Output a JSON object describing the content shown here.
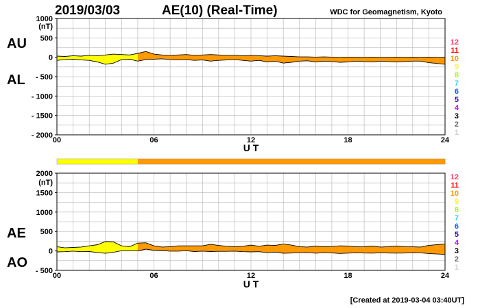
{
  "header": {
    "date": "2019/03/03",
    "title": "AE(10) (Real-Time)",
    "source": "WDC for Geomagnetism, Kyoto"
  },
  "footer": {
    "created": "[Created at 2019-03-04 03:40UT]"
  },
  "colors": {
    "stations_10": "#ff9900",
    "stations_fewer": "#ffff00",
    "outline": "#000000",
    "grid": "#b0b0b0"
  },
  "station_scale": [
    {
      "label": "12",
      "color": "#ff3366"
    },
    {
      "label": "11",
      "color": "#ff0000"
    },
    {
      "label": "10",
      "color": "#ff9900"
    },
    {
      "label": "9",
      "color": "#ffff00"
    },
    {
      "label": "8",
      "color": "#99ff00"
    },
    {
      "label": "7",
      "color": "#33ccff"
    },
    {
      "label": "6",
      "color": "#0066ff"
    },
    {
      "label": "5",
      "color": "#3300cc"
    },
    {
      "label": "4",
      "color": "#cc00ff"
    },
    {
      "label": "3",
      "color": "#000000"
    },
    {
      "label": "2",
      "color": "#666666"
    },
    {
      "label": "1",
      "color": "#cccccc"
    }
  ],
  "chart_data": [
    {
      "type": "area",
      "title": "AU / AL",
      "label_top": "AU",
      "label_bottom": "AL",
      "xlabel": "U T",
      "ylabel": "(nT)",
      "xlim": [
        0,
        24
      ],
      "ylim": [
        -2000,
        1000
      ],
      "xticks": [
        "00",
        "06",
        "12",
        "18",
        "24"
      ],
      "yticks": [
        "1000",
        "500",
        "0",
        "- 500",
        "- 1000",
        "- 1500",
        "- 2000"
      ],
      "ytick_values": [
        1000,
        500,
        0,
        -500,
        -1000,
        -1500,
        -2000
      ],
      "grid": true,
      "x_hours": [
        0,
        0.5,
        1,
        1.5,
        2,
        2.5,
        3,
        3.5,
        4,
        4.5,
        5,
        5.5,
        6,
        6.5,
        7,
        7.5,
        8,
        8.5,
        9,
        9.5,
        10,
        10.5,
        11,
        11.5,
        12,
        12.5,
        13,
        13.5,
        14,
        14.5,
        15,
        15.5,
        16,
        16.5,
        17,
        17.5,
        18,
        18.5,
        19,
        19.5,
        20,
        20.5,
        21,
        21.5,
        22,
        22.5,
        23,
        23.5,
        24
      ],
      "series": [
        {
          "name": "AU",
          "values": [
            30,
            20,
            40,
            30,
            50,
            40,
            60,
            80,
            70,
            60,
            100,
            150,
            80,
            60,
            50,
            60,
            70,
            50,
            60,
            70,
            60,
            50,
            50,
            40,
            50,
            40,
            30,
            40,
            30,
            20,
            10,
            10,
            5,
            10,
            5,
            0,
            5,
            5,
            0,
            5,
            0,
            0,
            5,
            0,
            5,
            0,
            5,
            0,
            0
          ]
        },
        {
          "name": "AL",
          "values": [
            -80,
            -60,
            -50,
            -70,
            -80,
            -120,
            -180,
            -150,
            -60,
            -50,
            -100,
            -60,
            -50,
            -40,
            -60,
            -70,
            -60,
            -80,
            -70,
            -100,
            -80,
            -70,
            -60,
            -80,
            -100,
            -80,
            -120,
            -100,
            -150,
            -130,
            -100,
            -90,
            -120,
            -100,
            -110,
            -130,
            -120,
            -100,
            -110,
            -120,
            -100,
            -110,
            -120,
            -110,
            -100,
            -100,
            -140,
            -160,
            -180
          ]
        }
      ],
      "station_band": [
        "yellow",
        "yellow",
        "yellow",
        "yellow",
        "yellow",
        "yellow",
        "yellow",
        "yellow",
        "yellow",
        "yellow",
        "orange",
        "orange",
        "orange",
        "orange",
        "orange",
        "orange",
        "orange",
        "orange",
        "orange",
        "orange",
        "orange",
        "orange",
        "orange",
        "orange",
        "orange",
        "orange",
        "orange",
        "orange",
        "orange",
        "orange",
        "orange",
        "orange",
        "orange",
        "orange",
        "orange",
        "orange",
        "orange",
        "orange",
        "orange",
        "orange",
        "orange",
        "orange",
        "orange",
        "orange",
        "orange",
        "orange",
        "orange",
        "orange"
      ]
    },
    {
      "type": "area",
      "title": "AE / AO",
      "label_top": "AE",
      "label_bottom": "AO",
      "xlabel": "U T",
      "ylabel": "(nT)",
      "xlim": [
        0,
        24
      ],
      "ylim": [
        -500,
        2000
      ],
      "xticks": [
        "00",
        "06",
        "12",
        "18",
        "24"
      ],
      "yticks": [
        "2000",
        "1500",
        "1000",
        "500",
        "0",
        "- 500"
      ],
      "ytick_values": [
        2000,
        1500,
        1000,
        500,
        0,
        -500
      ],
      "grid": true,
      "x_hours": [
        0,
        0.5,
        1,
        1.5,
        2,
        2.5,
        3,
        3.5,
        4,
        4.5,
        5,
        5.5,
        6,
        6.5,
        7,
        7.5,
        8,
        8.5,
        9,
        9.5,
        10,
        10.5,
        11,
        11.5,
        12,
        12.5,
        13,
        13.5,
        14,
        14.5,
        15,
        15.5,
        16,
        16.5,
        17,
        17.5,
        18,
        18.5,
        19,
        19.5,
        20,
        20.5,
        21,
        21.5,
        22,
        22.5,
        23,
        23.5,
        24
      ],
      "series": [
        {
          "name": "AE",
          "values": [
            110,
            80,
            90,
            100,
            130,
            160,
            240,
            230,
            130,
            110,
            200,
            210,
            130,
            100,
            110,
            130,
            130,
            130,
            130,
            170,
            140,
            120,
            110,
            120,
            150,
            120,
            150,
            140,
            180,
            150,
            110,
            100,
            125,
            110,
            115,
            130,
            125,
            105,
            110,
            125,
            100,
            110,
            125,
            110,
            105,
            100,
            145,
            160,
            180
          ]
        },
        {
          "name": "AO",
          "values": [
            -25,
            -20,
            -5,
            -20,
            -15,
            -40,
            -60,
            -35,
            5,
            5,
            0,
            45,
            15,
            10,
            -5,
            -5,
            5,
            -15,
            -5,
            -15,
            -10,
            -10,
            -5,
            -20,
            -25,
            -20,
            -45,
            -30,
            -60,
            -55,
            -45,
            -40,
            -58,
            -45,
            -52,
            -65,
            -57,
            -47,
            -55,
            -57,
            -50,
            -55,
            -57,
            -55,
            -47,
            -50,
            -67,
            -80,
            -90
          ]
        }
      ],
      "station_band": [
        "yellow",
        "yellow",
        "yellow",
        "yellow",
        "yellow",
        "yellow",
        "yellow",
        "yellow",
        "yellow",
        "yellow",
        "orange",
        "orange",
        "orange",
        "orange",
        "orange",
        "orange",
        "orange",
        "orange",
        "orange",
        "orange",
        "orange",
        "orange",
        "orange",
        "orange",
        "orange",
        "orange",
        "orange",
        "orange",
        "orange",
        "orange",
        "orange",
        "orange",
        "orange",
        "orange",
        "orange",
        "orange",
        "orange",
        "orange",
        "orange",
        "orange",
        "orange",
        "orange",
        "orange",
        "orange",
        "orange",
        "orange",
        "orange",
        "orange"
      ]
    }
  ],
  "station_count_bar": {
    "segments": [
      "yellow",
      "yellow",
      "yellow",
      "yellow",
      "yellow",
      "yellow",
      "yellow",
      "yellow",
      "yellow",
      "yellow",
      "orange",
      "orange",
      "orange",
      "orange",
      "orange",
      "orange",
      "orange",
      "orange",
      "orange",
      "orange",
      "orange",
      "orange",
      "orange",
      "orange",
      "orange",
      "orange",
      "orange",
      "orange",
      "orange",
      "orange",
      "orange",
      "orange",
      "orange",
      "orange",
      "orange",
      "orange",
      "orange",
      "orange",
      "orange",
      "orange",
      "orange",
      "orange",
      "orange",
      "orange",
      "orange",
      "orange",
      "orange",
      "orange"
    ]
  }
}
